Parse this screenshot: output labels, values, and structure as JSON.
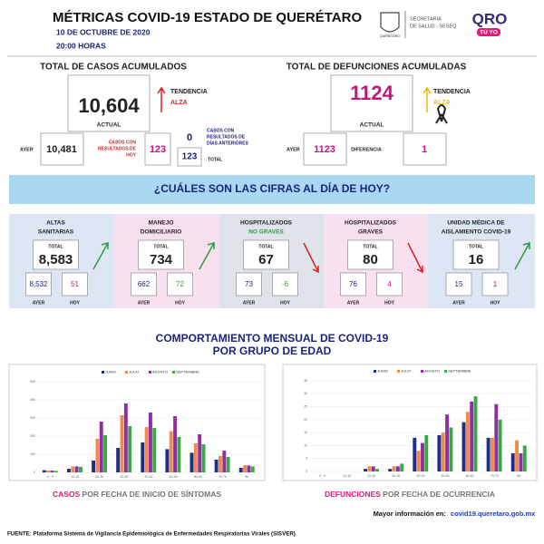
{
  "header": {
    "title": "MÉTRICAS COVID-19 ESTADO DE QUERÉTARO",
    "date": "10 DE OCTUBRE DE 2020",
    "time": "20:00 HORAS",
    "crest_label": "QUERÉTARO",
    "secretaria": [
      "SECRETARÍA",
      "DE SALUD - SESEQ"
    ],
    "logo": "QRO",
    "logo_sub": "TÚ YO"
  },
  "cases": {
    "title": "TOTAL DE CASOS ACUMULADOS",
    "value": "10,604",
    "value_label": "ACTUAL",
    "trend_label": "TENDENCIA",
    "trend": "ALZA",
    "yesterday_label": "AYER",
    "yesterday": "10,481",
    "results_label": [
      "CASOS CON",
      "RESULTADOS DE",
      "HOY"
    ],
    "results": "123",
    "prev_label": [
      "CASOS CON",
      "RESULTADOS DE",
      "DÍAS ANTERIORES"
    ],
    "prev": "0",
    "total": "123",
    "total_label": "TOTAL"
  },
  "deaths": {
    "title": "TOTAL DE DEFUNCIONES ACUMULADAS",
    "value": "1124",
    "value_label": "ACTUAL",
    "trend_label": "TENDENCIA",
    "trend": "ALZA",
    "yesterday_label": "AYER",
    "yesterday": "1123",
    "diff_label": "DIFERENCIA",
    "diff": "1"
  },
  "banner": "¿CUÁLES SON LAS CIFRAS AL DÍA DE HOY?",
  "panels": [
    {
      "title": [
        "ALTAS",
        "SANITARIAS"
      ],
      "total_label": "TOTAL",
      "total": "8,583",
      "ayer": "8,532",
      "hoy": "51",
      "ayer_label": "AYER",
      "hoy_label": "HOY"
    },
    {
      "title": [
        "MANEJO",
        "DOMICILIARIO"
      ],
      "total_label": "TOTAL",
      "total": "734",
      "ayer": "662",
      "hoy": "72",
      "ayer_label": "AYER",
      "hoy_label": "HOY"
    },
    {
      "title": [
        "HOSPITALIZADOS",
        "NO GRAVES"
      ],
      "total_label": "TOTAL",
      "total": "67",
      "ayer": "73",
      "hoy": "-6",
      "ayer_label": "AYER",
      "hoy_label": "HOY"
    },
    {
      "title": [
        "HOSPITALIZADOS",
        "GRAVES"
      ],
      "total_label": "TOTAL",
      "total": "80",
      "ayer": "76",
      "hoy": "4",
      "ayer_label": "AYER",
      "hoy_label": "HOY"
    },
    {
      "title": [
        "UNIDAD MÉDICA DE",
        "AISLAMIENTO COVID-19"
      ],
      "total_label": "TOTAL",
      "total": "16",
      "ayer": "15",
      "hoy": "1",
      "ayer_label": "AYER",
      "hoy_label": "HOY"
    }
  ],
  "section_title": [
    "COMPORTAMIENTO MENSUAL DE COVID-19",
    "POR GRUPO DE EDAD"
  ],
  "chart_data": [
    {
      "type": "bar",
      "caption_highlight": "CASOS",
      "caption": " POR FECHA DE INICIO DE SÍNTOMAS",
      "categories": [
        "0 - 9",
        "10-19",
        "20-29",
        "30-39",
        "40-49",
        "50-59",
        "60-69",
        "70-79",
        "80"
      ],
      "series": [
        {
          "name": "JUNIO",
          "color": "#1f2d8a",
          "values": [
            12,
            20,
            65,
            135,
            165,
            128,
            108,
            70,
            25
          ]
        },
        {
          "name": "JULIO",
          "color": "#f08a4b",
          "values": [
            10,
            33,
            185,
            315,
            250,
            228,
            160,
            90,
            40
          ]
        },
        {
          "name": "AGOSTO",
          "color": "#8e2fa6",
          "values": [
            10,
            33,
            280,
            380,
            330,
            310,
            210,
            120,
            38
          ]
        },
        {
          "name": "SEPTIEMBRE",
          "color": "#3aa845",
          "values": [
            8,
            30,
            205,
            255,
            245,
            195,
            155,
            85,
            33
          ]
        }
      ],
      "ylim": [
        0,
        500
      ],
      "yticks": [
        0,
        100,
        200,
        300,
        400,
        500
      ]
    },
    {
      "type": "bar",
      "caption_highlight": "DEFUNCIONES",
      "caption": " POR FECHA DE OCURRENCIA",
      "categories": [
        "0 - 9",
        "10-19",
        "20-29",
        "30-39",
        "40-49",
        "50-59",
        "60-69",
        "70-79",
        "80"
      ],
      "series": [
        {
          "name": "JUNIO",
          "color": "#1f2d8a",
          "values": [
            0,
            0,
            1,
            1,
            13,
            14,
            19,
            13,
            7
          ]
        },
        {
          "name": "JULIO",
          "color": "#f08a4b",
          "values": [
            0,
            0,
            2,
            2,
            8,
            15,
            23,
            13,
            12
          ]
        },
        {
          "name": "AGOSTO",
          "color": "#8e2fa6",
          "values": [
            0,
            0,
            2,
            2,
            11,
            22,
            27,
            26,
            7
          ]
        },
        {
          "name": "SEPTIEMBRE",
          "color": "#3aa845",
          "values": [
            0,
            0,
            1,
            3,
            14,
            17,
            29,
            20,
            10
          ]
        }
      ],
      "ylim": [
        0,
        35
      ],
      "yticks": [
        0,
        5,
        10,
        15,
        20,
        25,
        30,
        35
      ]
    }
  ],
  "footer": {
    "more_info": "Mayor información en:",
    "url": "covid19.queretaro.gob.mx",
    "source": "FUENTE: Plataforma Sistema de Vigilancia Epidemiológica de Enfermedades Respiratorias Virales (SISVER)"
  }
}
